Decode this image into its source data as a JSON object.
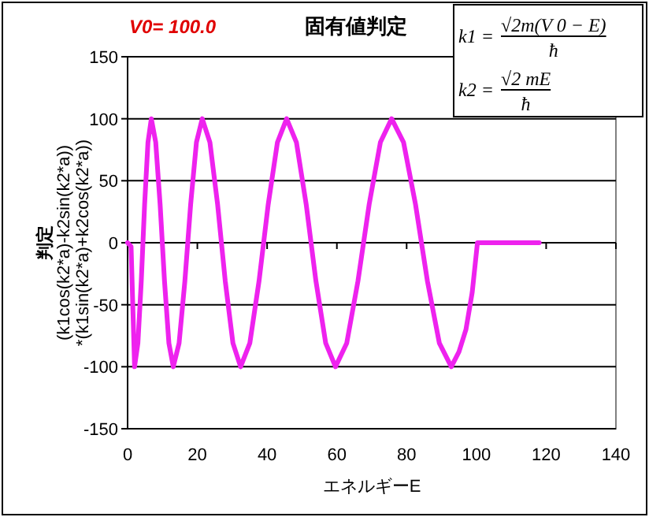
{
  "chart_data": {
    "type": "line",
    "title": "固有値判定",
    "xlabel": "エネルギーE",
    "ylabel": "判定\n(k1cos(k2*a)-k2sin(k2*a))\n*(k1sin(k2*a)+k2cos(k2*a))",
    "annotations": [
      "V0= 100.0",
      "k1 =",
      "√2m(V 0 − E)",
      "ħ",
      "k2 =",
      "√2 mE",
      "ħ"
    ],
    "xlim": [
      0,
      140
    ],
    "xticks": [
      0,
      20,
      40,
      60,
      80,
      100,
      120,
      140
    ],
    "ylim": [
      -150,
      150
    ],
    "yticks": [
      -150,
      -100,
      -50,
      0,
      50,
      100,
      150
    ],
    "grid": "y",
    "marker": "none",
    "line_style": "solid",
    "series": [
      {
        "color": "#ee22ee",
        "x": [
          0,
          1,
          2,
          2.96,
          3.92,
          4.88,
          5.84,
          6.8,
          8.06,
          9.32,
          10.58,
          11.84,
          13.1,
          14.76,
          16.42,
          18.08,
          19.74,
          21.4,
          23.6,
          25.8,
          28.0,
          30.2,
          32.4,
          35.04,
          37.68,
          40.32,
          42.96,
          45.6,
          48.4,
          51.2,
          54.0,
          56.8,
          59.6,
          62.82,
          66.04,
          69.26,
          72.48,
          75.7,
          79.12,
          82.54,
          85.96,
          89.38,
          92.8,
          95,
          97,
          98.8,
          100.3,
          118
        ],
        "values": [
          0,
          -3,
          -100,
          -81,
          -31,
          31,
          81,
          100,
          81,
          31,
          -31,
          -81,
          -100,
          -81,
          -31,
          31,
          81,
          100,
          81,
          31,
          -31,
          -81,
          -100,
          -81,
          -31,
          31,
          81,
          100,
          81,
          31,
          -31,
          -81,
          -100,
          -81,
          -31,
          31,
          81,
          100,
          81,
          31,
          -31,
          -81,
          -100,
          -88,
          -70,
          -40,
          0,
          0
        ]
      }
    ]
  }
}
